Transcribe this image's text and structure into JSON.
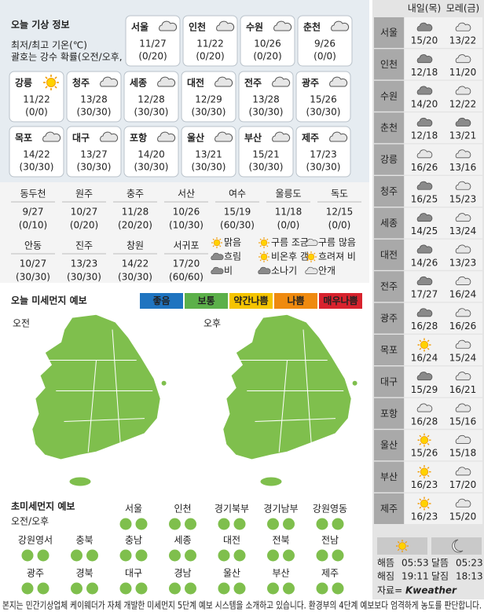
{
  "header": {
    "title": "오늘 기상 정보",
    "notes": [
      "최저/최고 기온(℃)",
      "괄호는 강수 확률(오전/오후, %)"
    ]
  },
  "cities": [
    {
      "name": "서울",
      "temp": "11/27",
      "rain": "(0/20)"
    },
    {
      "name": "인천",
      "temp": "11/22",
      "rain": "(0/20)"
    },
    {
      "name": "수원",
      "temp": "10/26",
      "rain": "(0/20)"
    },
    {
      "name": "춘천",
      "temp": "9/26",
      "rain": "(0/0)"
    },
    {
      "name": "강릉",
      "temp": "11/22",
      "rain": "(0/0)"
    },
    {
      "name": "청주",
      "temp": "13/28",
      "rain": "(30/30)"
    },
    {
      "name": "세종",
      "temp": "12/28",
      "rain": "(30/30)"
    },
    {
      "name": "대전",
      "temp": "12/29",
      "rain": "(30/30)"
    },
    {
      "name": "전주",
      "temp": "13/28",
      "rain": "(30/30)"
    },
    {
      "name": "광주",
      "temp": "15/26",
      "rain": "(30/30)"
    },
    {
      "name": "목포",
      "temp": "14/22",
      "rain": "(30/30)"
    },
    {
      "name": "대구",
      "temp": "13/27",
      "rain": "(30/30)"
    },
    {
      "name": "포항",
      "temp": "14/20",
      "rain": "(30/30)"
    },
    {
      "name": "울산",
      "temp": "13/21",
      "rain": "(30/30)"
    },
    {
      "name": "부산",
      "temp": "15/21",
      "rain": "(30/30)"
    },
    {
      "name": "제주",
      "temp": "17/23",
      "rain": "(30/30)"
    }
  ],
  "minor_cities": [
    {
      "name": "동두천",
      "temp": "9/27",
      "rain": "(0/10)"
    },
    {
      "name": "원주",
      "temp": "10/27",
      "rain": "(0/20)"
    },
    {
      "name": "충주",
      "temp": "11/28",
      "rain": "(20/20)"
    },
    {
      "name": "서산",
      "temp": "10/26",
      "rain": "(10/30)"
    },
    {
      "name": "여수",
      "temp": "15/19",
      "rain": "(60/30)"
    },
    {
      "name": "울릉도",
      "temp": "11/18",
      "rain": "(0/0)"
    },
    {
      "name": "독도",
      "temp": "12/15",
      "rain": "(0/0)"
    },
    {
      "name": "안동",
      "temp": "10/27",
      "rain": "(30/30)"
    },
    {
      "name": "진주",
      "temp": "13/23",
      "rain": "(30/30)"
    },
    {
      "name": "창원",
      "temp": "14/22",
      "rain": "(30/30)"
    },
    {
      "name": "서귀포",
      "temp": "17/20",
      "rain": "(60/60)"
    }
  ],
  "legend": [
    "맑음",
    "구름 조금",
    "구름 많음",
    "흐림",
    "비온후 갬",
    "흐려져 비",
    "비",
    "소나기",
    "안개"
  ],
  "dust": {
    "title": "오늘 미세먼지 예보",
    "scale": [
      "좋음",
      "보통",
      "약간나쁨",
      "나쁨",
      "매우나쁨"
    ],
    "scale_colors": [
      "#1f74c0",
      "#5cb04a",
      "#f5c400",
      "#ef8a0f",
      "#d8232e"
    ],
    "periods": [
      "오전",
      "오후"
    ]
  },
  "ultrafine": {
    "title": "초미세먼지 예보",
    "subtitle": "오전/오후",
    "regions": [
      "서울",
      "인천",
      "경기북부",
      "경기남부",
      "강원영동",
      "강원영서",
      "충북",
      "충남",
      "세종",
      "대전",
      "전북",
      "전남",
      "광주",
      "경북",
      "대구",
      "경남",
      "울산",
      "부산",
      "제주"
    ]
  },
  "forecast": {
    "headers": [
      "내일(목)",
      "모레(금)"
    ],
    "rows": [
      {
        "name": "서울",
        "tomorrow": "15/20",
        "after": "13/22"
      },
      {
        "name": "인천",
        "tomorrow": "12/18",
        "after": "11/20"
      },
      {
        "name": "수원",
        "tomorrow": "14/20",
        "after": "12/22"
      },
      {
        "name": "춘천",
        "tomorrow": "12/18",
        "after": "13/21"
      },
      {
        "name": "강릉",
        "tomorrow": "16/26",
        "after": "13/16"
      },
      {
        "name": "청주",
        "tomorrow": "16/25",
        "after": "15/23"
      },
      {
        "name": "세종",
        "tomorrow": "14/25",
        "after": "13/24"
      },
      {
        "name": "대전",
        "tomorrow": "14/26",
        "after": "13/23"
      },
      {
        "name": "전주",
        "tomorrow": "17/27",
        "after": "16/24"
      },
      {
        "name": "광주",
        "tomorrow": "16/28",
        "after": "16/26"
      },
      {
        "name": "목포",
        "tomorrow": "16/24",
        "after": "15/24"
      },
      {
        "name": "대구",
        "tomorrow": "15/29",
        "after": "16/21"
      },
      {
        "name": "포항",
        "tomorrow": "16/28",
        "after": "15/16"
      },
      {
        "name": "울산",
        "tomorrow": "15/26",
        "after": "15/18"
      },
      {
        "name": "부산",
        "tomorrow": "16/23",
        "after": "17/20"
      },
      {
        "name": "제주",
        "tomorrow": "16/23",
        "after": "15/20"
      }
    ]
  },
  "astro": [
    {
      "label": "해뜸",
      "time": "05:53"
    },
    {
      "label": "해짐",
      "time": "19:11"
    },
    {
      "label": "달뜸",
      "time": "05:23"
    },
    {
      "label": "달짐",
      "time": "18:13"
    }
  ],
  "source": {
    "label": "자료=",
    "brand": "Kweather"
  },
  "footer": "본지는 민간기상업체 케이웨더가 자체 개발한 미세먼지 5단계 예보 시스템을 소개하고 있습니다. 환경부의 4단계 예보보다 엄격하게 농도를 판단합니다."
}
